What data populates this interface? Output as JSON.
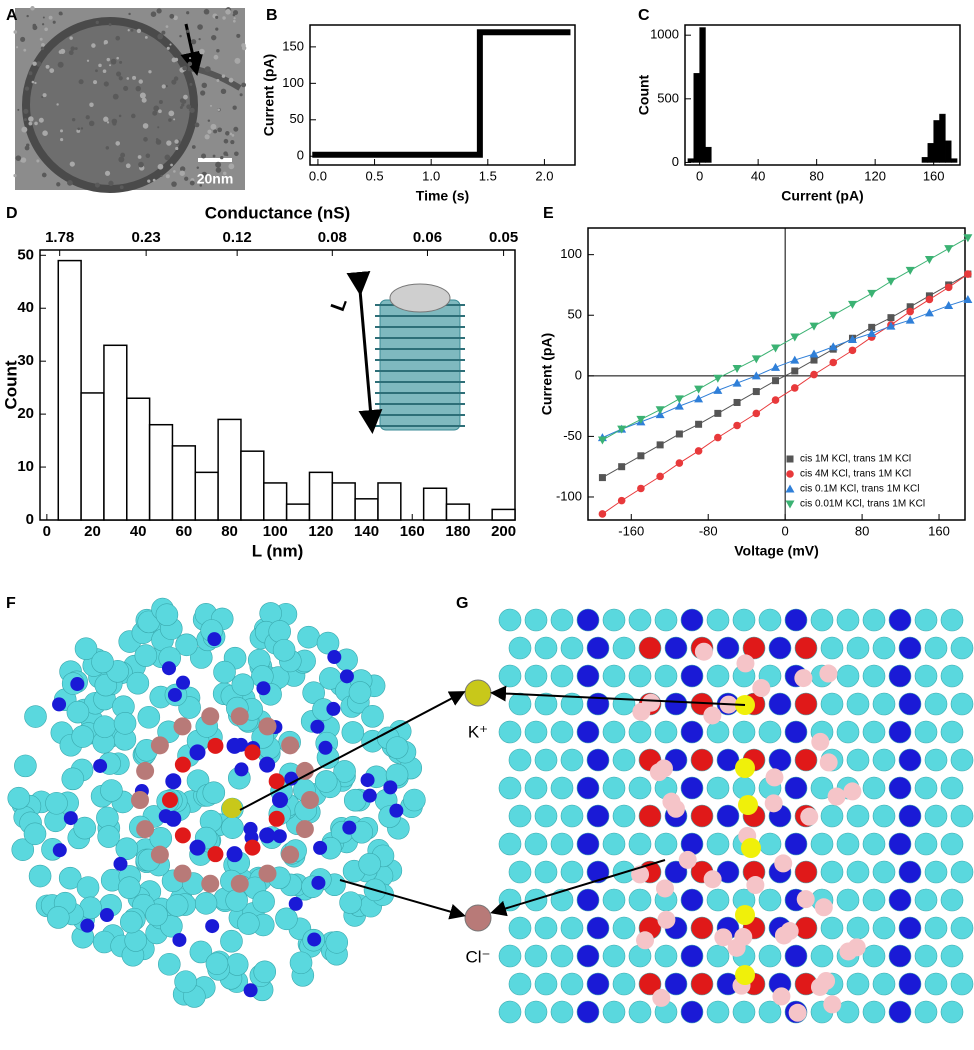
{
  "panels": [
    "A",
    "B",
    "C",
    "D",
    "E",
    "F",
    "G"
  ],
  "image_labels": {
    "scale_bar": "20nm",
    "length": "L",
    "k_ion": "K⁺",
    "cl_ion": "Cl⁻"
  },
  "chart_data": [
    {
      "type": "line",
      "xlabel": "Time (s)",
      "ylabel": "Current (pA)",
      "x": [
        -0.05,
        1.43,
        1.43,
        2.23
      ],
      "series": [
        {
          "name": "trace",
          "color": "#000000",
          "values": [
            2,
            2,
            170,
            170
          ]
        }
      ],
      "xlim": [
        -0.07,
        2.27
      ],
      "ylim": [
        -12,
        180
      ],
      "xticks": [
        {
          "value": 0,
          "label": "0.0"
        },
        {
          "value": 0.5,
          "label": "0.5"
        },
        {
          "value": 1,
          "label": "1.0"
        },
        {
          "value": 1.5,
          "label": "1.5"
        },
        {
          "value": 2,
          "label": "2.0"
        }
      ],
      "yticks": [
        0,
        50,
        100,
        150
      ]
    },
    {
      "type": "histogram",
      "xlabel": "Current (pA)",
      "ylabel": "Count",
      "color": "#000000",
      "edgecolor": "#000000",
      "bins": [
        -8,
        -4,
        0,
        4,
        8,
        12,
        16,
        20,
        24,
        28,
        32,
        36,
        40,
        44,
        48,
        52,
        56,
        60,
        64,
        68,
        72,
        76,
        80,
        84,
        88,
        92,
        96,
        100,
        104,
        108,
        112,
        116,
        120,
        124,
        128,
        132,
        136,
        140,
        144,
        148,
        152,
        156,
        160,
        164,
        168,
        172,
        176
      ],
      "values": [
        30,
        700,
        1060,
        120,
        0,
        0,
        0,
        0,
        0,
        0,
        0,
        0,
        0,
        0,
        0,
        0,
        0,
        0,
        0,
        0,
        0,
        0,
        0,
        0,
        0,
        0,
        0,
        0,
        0,
        0,
        0,
        0,
        0,
        0,
        0,
        0,
        0,
        0,
        0,
        0,
        40,
        150,
        330,
        380,
        170,
        30
      ],
      "xlim": [
        -10,
        178
      ],
      "ylim": [
        -20,
        1080
      ],
      "xticks": [
        0,
        40,
        80,
        120,
        160
      ],
      "yticks": [
        0,
        500,
        1000
      ]
    },
    {
      "type": "histogram",
      "xlabel": "L (nm)",
      "ylabel": "Count",
      "x2label": "Conductance (nS)",
      "color": "#ffffff",
      "edgecolor": "#000000",
      "bins": [
        5,
        15,
        25,
        35,
        45,
        55,
        65,
        75,
        85,
        95,
        105,
        115,
        125,
        135,
        145,
        155,
        165,
        175,
        185,
        195,
        205
      ],
      "values": [
        49,
        24,
        33,
        23,
        18,
        14,
        9,
        19,
        13,
        7,
        3,
        9,
        7,
        4,
        7,
        0,
        6,
        3,
        0,
        2
      ],
      "xlim": [
        -3,
        205
      ],
      "ylim": [
        0,
        51
      ],
      "xticks": [
        0,
        20,
        40,
        60,
        80,
        100,
        120,
        140,
        160,
        180,
        200
      ],
      "yticks": [
        0,
        10,
        20,
        30,
        40,
        50
      ],
      "x2_scale": {
        "type": "reciprocal",
        "numerator": 10
      },
      "x2ticks": [
        1.78,
        0.23,
        0.12,
        0.08,
        0.06,
        0.05
      ]
    },
    {
      "type": "line",
      "xlabel": "Voltage (mV)",
      "ylabel": "Current (pA)",
      "zero_lines": true,
      "legend": "lower right",
      "x": [
        -190,
        -170,
        -150,
        -130,
        -110,
        -90,
        -70,
        -50,
        -30,
        -10,
        10,
        30,
        50,
        70,
        90,
        110,
        130,
        150,
        170,
        190
      ],
      "series": [
        {
          "name": "cis 1M KCl, trans 1M KCl",
          "color": "#555555",
          "marker": "square",
          "values": [
            -84,
            -75,
            -66,
            -57,
            -48,
            -40,
            -31,
            -22,
            -13,
            -4,
            4,
            13,
            22,
            31,
            40,
            48,
            57,
            66,
            75,
            84
          ]
        },
        {
          "name": "cis 4M KCl, trans 1M KCl",
          "color": "#e8393b",
          "marker": "circle",
          "values": [
            -114,
            -103,
            -93,
            -83,
            -72,
            -62,
            -51,
            -41,
            -31,
            -20,
            -10,
            1,
            11,
            21,
            32,
            42,
            53,
            63,
            73,
            84
          ]
        },
        {
          "name": "cis 0.1M KCl, trans 1M KCl",
          "color": "#2f7fd8",
          "marker": "triangle-up",
          "values": [
            -51,
            -44,
            -38,
            -32,
            -25,
            -19,
            -12,
            -6,
            0,
            7,
            13,
            18,
            24,
            30,
            35,
            41,
            46,
            52,
            58,
            63
          ]
        },
        {
          "name": "cis 0.01M KCl, trans 1M KCl",
          "color": "#3bb273",
          "marker": "triangle-down",
          "values": [
            -53,
            -44,
            -36,
            -28,
            -19,
            -11,
            -2,
            6,
            14,
            23,
            32,
            41,
            50,
            59,
            68,
            78,
            87,
            96,
            105,
            114
          ]
        }
      ],
      "xlim": [
        -205,
        187
      ],
      "ylim": [
        -119,
        122
      ],
      "xticks": [
        -160,
        -80,
        0,
        80,
        160
      ],
      "yticks": [
        -100,
        -50,
        0,
        50,
        100
      ]
    }
  ]
}
